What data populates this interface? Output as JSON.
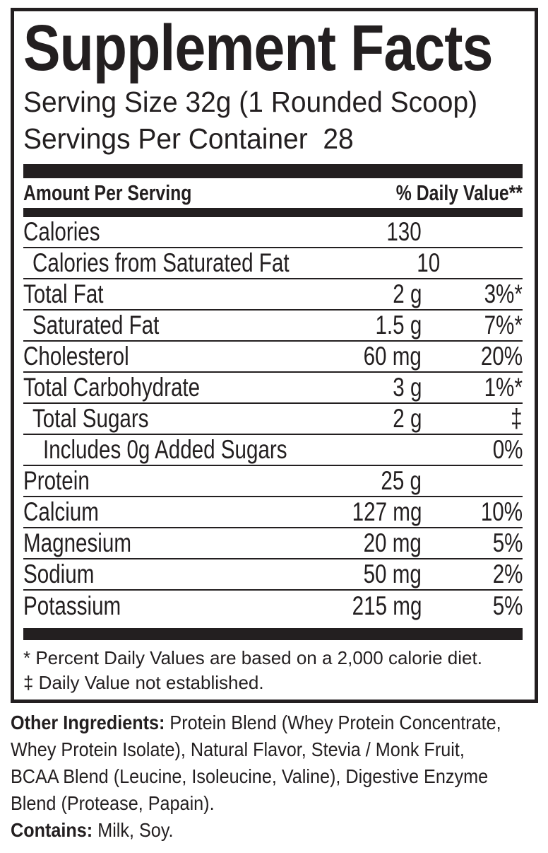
{
  "label": {
    "title": "Supplement Facts",
    "serving_size": "Serving Size 32g (1 Rounded Scoop)",
    "servings_per_container": "Servings Per Container  28",
    "header": {
      "amount_per_serving": "Amount Per Serving",
      "daily_value": "% Daily Value**"
    },
    "rows": [
      {
        "name": "Calories",
        "amount": "130",
        "dv": "",
        "indent": 0
      },
      {
        "name": "Calories from Saturated Fat",
        "amount": "10",
        "dv": "",
        "indent": 1
      },
      {
        "name": "Total Fat",
        "amount": "2 g",
        "dv": "3%*",
        "indent": 0
      },
      {
        "name": "Saturated Fat",
        "amount": "1.5 g",
        "dv": "7%*",
        "indent": 1
      },
      {
        "name": "Cholesterol",
        "amount": "60 mg",
        "dv": "20%",
        "indent": 0
      },
      {
        "name": "Total Carbohydrate",
        "amount": "3 g",
        "dv": "1%*",
        "indent": 0
      },
      {
        "name": "Total Sugars",
        "amount": "2 g",
        "dv": "‡",
        "indent": 1
      },
      {
        "name": "Includes 0g Added Sugars",
        "amount": "",
        "dv": "0%",
        "indent": 2
      },
      {
        "name": "Protein",
        "amount": "25 g",
        "dv": "",
        "indent": 0
      },
      {
        "name": "Calcium",
        "amount": "127 mg",
        "dv": "10%",
        "indent": 0
      },
      {
        "name": "Magnesium",
        "amount": "20 mg",
        "dv": "5%",
        "indent": 0
      },
      {
        "name": "Sodium",
        "amount": "50 mg",
        "dv": "2%",
        "indent": 0
      },
      {
        "name": "Potassium",
        "amount": "215 mg",
        "dv": "5%",
        "indent": 0
      }
    ],
    "footnotes": [
      "* Percent Daily Values are based on a 2,000 calorie diet.",
      "‡ Daily Value not established."
    ]
  },
  "other_ingredients": {
    "label": "Other Ingredients:",
    "lines": [
      " Protein Blend (Whey Protein Concentrate,",
      "Whey Protein Isolate), Natural Flavor, Stevia / Monk Fruit,",
      "BCAA Blend (Leucine, Isoleucine, Valine), Digestive Enzyme",
      "Blend (Protease, Papain)."
    ]
  },
  "contains": {
    "label": "Contains:",
    "text": " Milk, Soy."
  },
  "colors": {
    "ink": "#231f20",
    "bg": "#ffffff"
  }
}
